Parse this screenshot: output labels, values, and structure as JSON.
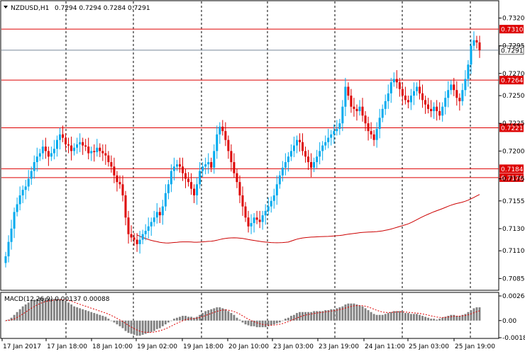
{
  "header": {
    "symbol_label": "NZDUSD,H1",
    "ohlc_label": "0.7294 0.7294 0.7284 0.7291"
  },
  "chart_data": {
    "type": "candlestick",
    "symbol": "NZDUSD",
    "timeframe": "H1",
    "ohlc_last": {
      "open": 0.7294,
      "high": 0.7294,
      "low": 0.7284,
      "close": 0.7291
    },
    "ylim": [
      0.7075,
      0.7335
    ],
    "y_ticks": [
      "0.7320",
      "0.7295",
      "0.7270",
      "0.7250",
      "0.7225",
      "0.7200",
      "0.7175",
      "0.7155",
      "0.7130",
      "0.7110",
      "0.7085"
    ],
    "x_ticks": [
      "17 Jan 2017",
      "17 Jan 18:00",
      "18 Jan 10:00",
      "19 Jan 02:00",
      "19 Jan 18:00",
      "20 Jan 10:00",
      "23 Jan 03:00",
      "23 Jan 19:00",
      "24 Jan 11:00",
      "25 Jan 03:00",
      "25 Jan 19:00"
    ],
    "levels": [
      {
        "value": 0.731,
        "label": "0.7310"
      },
      {
        "value": 0.7264,
        "label": "0.7264"
      },
      {
        "value": 0.7221,
        "label": "0.7221"
      },
      {
        "value": 0.7184,
        "label": "0.7184"
      },
      {
        "value": 0.7176,
        "label": "0.7176"
      }
    ],
    "current_price": {
      "value": 0.7291,
      "label": "0.7291"
    },
    "closes": [
      0.7105,
      0.7118,
      0.713,
      0.7145,
      0.7152,
      0.716,
      0.7165,
      0.7168,
      0.7175,
      0.7182,
      0.719,
      0.7195,
      0.7198,
      0.7204,
      0.72,
      0.7195,
      0.7198,
      0.7202,
      0.721,
      0.7215,
      0.7212,
      0.7206,
      0.7205,
      0.72,
      0.7203,
      0.7206,
      0.7208,
      0.7205,
      0.7204,
      0.7198,
      0.72,
      0.7199,
      0.7203,
      0.72,
      0.7198,
      0.7196,
      0.719,
      0.7186,
      0.7178,
      0.7172,
      0.717,
      0.716,
      0.714,
      0.7125,
      0.7122,
      0.712,
      0.7116,
      0.712,
      0.7125,
      0.7128,
      0.7132,
      0.7136,
      0.714,
      0.7145,
      0.7142,
      0.715,
      0.7162,
      0.717,
      0.7182,
      0.7186,
      0.7188,
      0.7186,
      0.718,
      0.7175,
      0.7172,
      0.7166,
      0.716,
      0.717,
      0.7182,
      0.7186,
      0.7188,
      0.719,
      0.7185,
      0.72,
      0.7215,
      0.7222,
      0.7218,
      0.721,
      0.72,
      0.719,
      0.718,
      0.7172,
      0.716,
      0.715,
      0.714,
      0.7132,
      0.7135,
      0.714,
      0.7138,
      0.7136,
      0.7142,
      0.7146,
      0.715,
      0.7155,
      0.716,
      0.717,
      0.7178,
      0.7185,
      0.719,
      0.7195,
      0.72,
      0.7205,
      0.721,
      0.7208,
      0.72,
      0.7195,
      0.719,
      0.7185,
      0.719,
      0.7195,
      0.72,
      0.7205,
      0.7208,
      0.7212,
      0.7215,
      0.7218,
      0.722,
      0.7225,
      0.724,
      0.7258,
      0.725,
      0.724,
      0.7238,
      0.7236,
      0.724,
      0.7232,
      0.7225,
      0.7218,
      0.7215,
      0.721,
      0.722,
      0.723,
      0.7238,
      0.7245,
      0.7252,
      0.7262,
      0.7265,
      0.7262,
      0.7256,
      0.725,
      0.7246,
      0.7244,
      0.725,
      0.7254,
      0.7258,
      0.7252,
      0.7246,
      0.7242,
      0.7238,
      0.7236,
      0.724,
      0.7236,
      0.7232,
      0.724,
      0.7248,
      0.7255,
      0.726,
      0.7255,
      0.7248,
      0.7245,
      0.7255,
      0.7265,
      0.7278,
      0.7295,
      0.73,
      0.7298,
      0.7291
    ]
  },
  "macd": {
    "label": "MACD(12,26,9) 0.00137 0.00088",
    "scale_ticks": [
      "0.0026",
      "0.00",
      "-0.00181"
    ],
    "values": [
      0.0,
      0.0001,
      0.0003,
      0.0006,
      0.0009,
      0.0012,
      0.0015,
      0.0017,
      0.0019,
      0.0021,
      0.0022,
      0.0023,
      0.0024,
      0.0024,
      0.0024,
      0.0023,
      0.0023,
      0.0023,
      0.0023,
      0.0023,
      0.0022,
      0.0021,
      0.0019,
      0.0017,
      0.0015,
      0.0014,
      0.0013,
      0.0012,
      0.0011,
      0.001,
      0.0009,
      0.0008,
      0.0007,
      0.0006,
      0.0005,
      0.0004,
      0.0002,
      0.0,
      -0.0002,
      -0.0004,
      -0.0006,
      -0.0008,
      -0.0011,
      -0.0013,
      -0.0014,
      -0.0015,
      -0.0016,
      -0.0016,
      -0.0015,
      -0.0014,
      -0.0013,
      -0.0012,
      -0.0011,
      -0.0009,
      -0.0008,
      -0.0006,
      -0.0004,
      -0.0002,
      0.0,
      0.0002,
      0.0003,
      0.0004,
      0.0005,
      0.0005,
      0.0004,
      0.0004,
      0.0003,
      0.0004,
      0.0006,
      0.0008,
      0.001,
      0.0011,
      0.0012,
      0.0013,
      0.0014,
      0.0014,
      0.0013,
      0.0012,
      0.001,
      0.0008,
      0.0006,
      0.0003,
      0.0001,
      -0.0002,
      -0.0004,
      -0.0005,
      -0.0006,
      -0.0006,
      -0.0007,
      -0.0007,
      -0.0007,
      -0.0007,
      -0.0006,
      -0.0005,
      -0.0004,
      -0.0003,
      -0.0002,
      0.0,
      0.0002,
      0.0003,
      0.0005,
      0.0006,
      0.0008,
      0.0009,
      0.0009,
      0.0009,
      0.0009,
      0.0009,
      0.001,
      0.001,
      0.001,
      0.001,
      0.0011,
      0.0011,
      0.0012,
      0.0012,
      0.0013,
      0.0014,
      0.0015,
      0.0017,
      0.0018,
      0.0018,
      0.0018,
      0.0017,
      0.0016,
      0.0015,
      0.0013,
      0.0011,
      0.0009,
      0.0007,
      0.0006,
      0.0006,
      0.0006,
      0.0007,
      0.0008,
      0.0009,
      0.001,
      0.001,
      0.001,
      0.0009,
      0.0008,
      0.0008,
      0.0007,
      0.0007,
      0.0007,
      0.0006,
      0.0005,
      0.0004,
      0.0003,
      0.0002,
      0.0002,
      0.0001,
      0.0002,
      0.0003,
      0.0004,
      0.0005,
      0.0006,
      0.0006,
      0.0005,
      0.0005,
      0.0006,
      0.0007,
      0.0009,
      0.0011,
      0.0013,
      0.0014,
      0.0014
    ]
  },
  "colors": {
    "bull": "#00aaee",
    "bear": "#dd0000",
    "level_line": "#dd0000",
    "ma_line": "#cc0000",
    "grid": "#000000",
    "histogram": "#808080",
    "signal": "#dd0000",
    "current_price_line": "#778899"
  }
}
